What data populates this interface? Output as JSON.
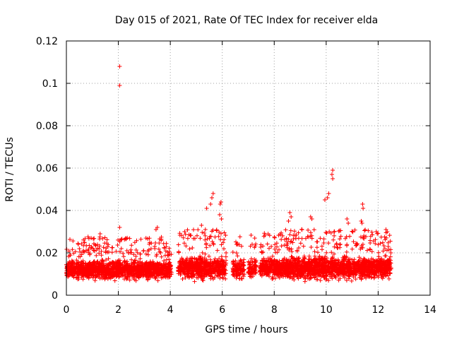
{
  "chart_data": {
    "type": "scatter",
    "title": "Day 015 of 2021, Rate Of TEC Index for receiver elda",
    "xlabel": "GPS time / hours",
    "ylabel": "ROTI / TECUs",
    "xlim": [
      0,
      14
    ],
    "ylim": [
      0,
      0.12
    ],
    "xticks": [
      0,
      2,
      4,
      6,
      8,
      10,
      12,
      14
    ],
    "xtick_labels": [
      "0",
      "2",
      "4",
      "6",
      "8",
      "10",
      "12",
      "14"
    ],
    "yticks": [
      0,
      0.02,
      0.04,
      0.06,
      0.08,
      0.1,
      0.12
    ],
    "ytick_labels": [
      "0",
      "0.02",
      "0.04",
      "0.06",
      "0.08",
      "0.1",
      "0.12"
    ],
    "grid": true,
    "marker": "+",
    "color": "#ff0000",
    "clusters": [
      {
        "x_start": 0.0,
        "x_end": 4.05,
        "y_base": 0.012,
        "y_spread": 0.006,
        "count": 1500
      },
      {
        "x_start": 4.3,
        "x_end": 6.15,
        "y_base": 0.013,
        "y_spread": 0.007,
        "count": 650
      },
      {
        "x_start": 6.4,
        "x_end": 6.85,
        "y_base": 0.012,
        "y_spread": 0.006,
        "count": 120
      },
      {
        "x_start": 7.0,
        "x_end": 7.3,
        "y_base": 0.013,
        "y_spread": 0.006,
        "count": 80
      },
      {
        "x_start": 7.45,
        "x_end": 12.5,
        "y_base": 0.013,
        "y_spread": 0.007,
        "count": 1900
      }
    ],
    "notable_points": [
      {
        "x": 2.05,
        "y": 0.108
      },
      {
        "x": 2.05,
        "y": 0.099
      },
      {
        "x": 10.25,
        "y": 0.059
      },
      {
        "x": 10.22,
        "y": 0.057
      },
      {
        "x": 10.25,
        "y": 0.055
      },
      {
        "x": 10.1,
        "y": 0.048
      },
      {
        "x": 9.95,
        "y": 0.045
      },
      {
        "x": 10.05,
        "y": 0.046
      },
      {
        "x": 5.65,
        "y": 0.048
      },
      {
        "x": 5.6,
        "y": 0.046
      },
      {
        "x": 5.55,
        "y": 0.043
      },
      {
        "x": 5.4,
        "y": 0.041
      },
      {
        "x": 5.95,
        "y": 0.044
      },
      {
        "x": 5.92,
        "y": 0.043
      },
      {
        "x": 5.9,
        "y": 0.038
      },
      {
        "x": 5.97,
        "y": 0.036
      },
      {
        "x": 11.4,
        "y": 0.043
      },
      {
        "x": 11.42,
        "y": 0.041
      },
      {
        "x": 11.35,
        "y": 0.035
      },
      {
        "x": 11.38,
        "y": 0.034
      },
      {
        "x": 9.4,
        "y": 0.037
      },
      {
        "x": 9.45,
        "y": 0.036
      },
      {
        "x": 8.6,
        "y": 0.039
      },
      {
        "x": 8.65,
        "y": 0.037
      },
      {
        "x": 8.55,
        "y": 0.035
      },
      {
        "x": 10.8,
        "y": 0.036
      },
      {
        "x": 10.85,
        "y": 0.034
      },
      {
        "x": 3.5,
        "y": 0.032
      },
      {
        "x": 3.45,
        "y": 0.031
      },
      {
        "x": 2.05,
        "y": 0.032
      },
      {
        "x": 1.3,
        "y": 0.029
      },
      {
        "x": 12.3,
        "y": 0.031
      },
      {
        "x": 12.35,
        "y": 0.03
      },
      {
        "x": 6.55,
        "y": 0.024
      },
      {
        "x": 6.6,
        "y": 0.024
      },
      {
        "x": 7.15,
        "y": 0.024
      },
      {
        "x": 4.55,
        "y": 0.03
      },
      {
        "x": 5.2,
        "y": 0.033
      },
      {
        "x": 5.35,
        "y": 0.031
      }
    ]
  }
}
